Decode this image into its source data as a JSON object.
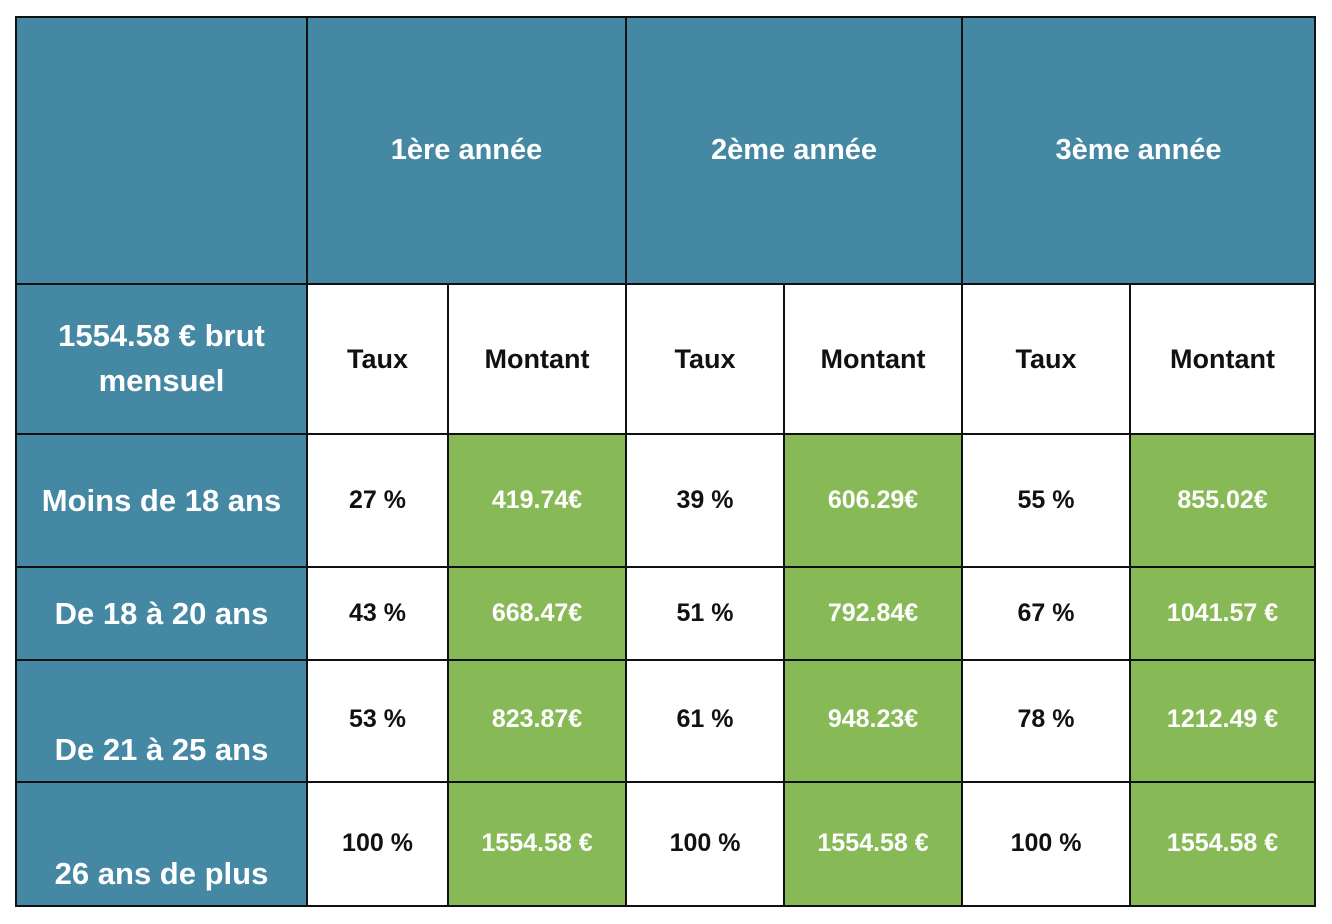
{
  "header": {
    "corner": "",
    "years": [
      "1ère année",
      "2ème année",
      "3ème année"
    ]
  },
  "subheader": {
    "base_label": "1554.58 € brut mensuel",
    "rate_label": "Taux",
    "amount_label": "Montant"
  },
  "rows": [
    {
      "label": "Moins de 18 ans",
      "year1": {
        "rate": "27 %",
        "amount": "419.74€"
      },
      "year2": {
        "rate": "39 %",
        "amount": "606.29€"
      },
      "year3": {
        "rate": "55 %",
        "amount": "855.02€"
      }
    },
    {
      "label": "De 18 à 20 ans",
      "year1": {
        "rate": "43 %",
        "amount": "668.47€"
      },
      "year2": {
        "rate": "51 %",
        "amount": "792.84€"
      },
      "year3": {
        "rate": "67 %",
        "amount": "1041.57 €"
      }
    },
    {
      "label": "De 21 à 25 ans",
      "year1": {
        "rate": "53 %",
        "amount": "823.87€"
      },
      "year2": {
        "rate": "61 %",
        "amount": "948.23€"
      },
      "year3": {
        "rate": "78 %",
        "amount": "1212.49 €"
      }
    },
    {
      "label": "26 ans de plus",
      "year1": {
        "rate": "100 %",
        "amount": "1554.58 €"
      },
      "year2": {
        "rate": "100 %",
        "amount": "1554.58 €"
      },
      "year3": {
        "rate": "100 %",
        "amount": "1554.58 €"
      }
    }
  ],
  "colors": {
    "header_blue": "#4588a3",
    "amount_green": "#88b957",
    "border": "#111111"
  }
}
